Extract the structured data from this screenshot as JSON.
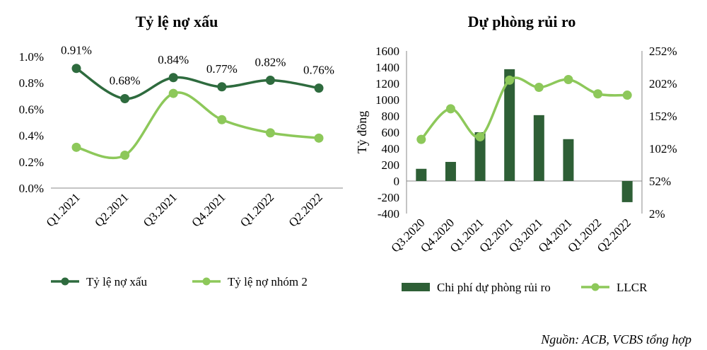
{
  "source": "Nguồn: ACB, VCBS tổng hợp",
  "colors": {
    "dark_green": "#2E6B3E",
    "light_green": "#8DC85A",
    "bar": "#2E5F36"
  },
  "chart_data": [
    {
      "type": "line",
      "title": "Tỷ lệ nợ xấu",
      "categories": [
        "Q1.2021",
        "Q2.2021",
        "Q3.2021",
        "Q4.2021",
        "Q1.2022",
        "Q2.2022"
      ],
      "ylim": [
        0,
        1.0
      ],
      "yticks": [
        "0.0%",
        "0.2%",
        "0.4%",
        "0.6%",
        "0.8%",
        "1.0%"
      ],
      "ytick_values": [
        0,
        0.2,
        0.4,
        0.6,
        0.8,
        1.0
      ],
      "series": [
        {
          "name": "Tỷ lệ nợ xấu",
          "values": [
            0.91,
            0.68,
            0.84,
            0.77,
            0.82,
            0.76
          ],
          "labels": [
            "0.91%",
            "0.68%",
            "0.84%",
            "0.77%",
            "0.82%",
            "0.76%"
          ],
          "color": "#2E6B3E"
        },
        {
          "name": "Tỷ lệ nợ nhóm 2",
          "values": [
            0.31,
            0.25,
            0.72,
            0.52,
            0.42,
            0.38
          ],
          "color": "#8DC85A"
        }
      ],
      "legend": "bottom"
    },
    {
      "type": "bar",
      "title": "Dự phòng rủi ro",
      "categories": [
        "Q3.2020",
        "Q4.2020",
        "Q1.2021",
        "Q2.2021",
        "Q3.2021",
        "Q4.2021",
        "Q1.2022",
        "Q2.2022"
      ],
      "ylabel": "Tỷ đồng",
      "ylim": [
        -400,
        1600
      ],
      "yticks": [
        "-400",
        "-200",
        "0",
        "200",
        "400",
        "600",
        "800",
        "1000",
        "1200",
        "1400",
        "1600"
      ],
      "ytick_values": [
        -400,
        -200,
        0,
        200,
        400,
        600,
        800,
        1000,
        1200,
        1400,
        1600
      ],
      "y2lim": [
        2,
        252
      ],
      "y2ticks": [
        "2%",
        "52%",
        "102%",
        "152%",
        "202%",
        "252%"
      ],
      "y2tick_values": [
        2,
        52,
        102,
        152,
        202,
        252
      ],
      "series": [
        {
          "name": "Chi phí dự phòng rủi ro",
          "type": "bar",
          "axis": "left",
          "values": [
            150,
            235,
            600,
            1375,
            810,
            515,
            0,
            -260
          ],
          "color": "#2E5F36"
        },
        {
          "name": "LLCR",
          "type": "line",
          "axis": "right",
          "values": [
            116,
            163,
            120,
            207,
            196,
            208,
            186,
            184
          ],
          "color": "#8DC85A"
        }
      ],
      "legend": "bottom"
    }
  ]
}
